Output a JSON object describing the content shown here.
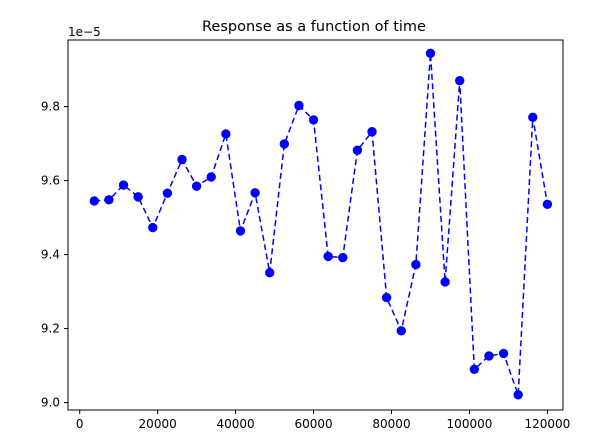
{
  "chart_data": {
    "type": "line",
    "title": "Response as a function of time",
    "xlabel": "",
    "ylabel": "",
    "offset_label": "1e−5",
    "xlim": [
      -3000,
      124000
    ],
    "ylim": [
      8.98,
      9.98
    ],
    "y_multiplier": 1e-05,
    "grid": false,
    "legend": "none",
    "x_ticks": [
      0,
      20000,
      40000,
      60000,
      80000,
      100000,
      120000
    ],
    "x_tick_labels": [
      "0",
      "20000",
      "40000",
      "60000",
      "80000",
      "100000",
      "120000"
    ],
    "y_ticks": [
      9.0,
      9.2,
      9.4,
      9.6,
      9.8
    ],
    "y_tick_labels": [
      "9.0",
      "9.2",
      "9.4",
      "9.6",
      "9.8"
    ],
    "series": [
      {
        "color": "#0000ff",
        "line_style": "dashed",
        "marker": "circle",
        "x": [
          3750,
          7500,
          11250,
          15000,
          18750,
          22500,
          26250,
          30000,
          33750,
          37500,
          41250,
          45000,
          48750,
          52500,
          56250,
          60000,
          63750,
          67500,
          71250,
          75000,
          78750,
          82500,
          86250,
          90000,
          93750,
          97500,
          101250,
          105000,
          108750,
          112500,
          116250,
          120000
        ],
        "y": [
          9.545,
          9.548,
          9.588,
          9.556,
          9.473,
          9.566,
          9.657,
          9.585,
          9.61,
          9.726,
          9.464,
          9.567,
          9.351,
          9.699,
          9.803,
          9.764,
          9.395,
          9.392,
          9.682,
          9.732,
          9.284,
          9.194,
          9.373,
          9.944,
          9.326,
          9.87,
          9.09,
          9.126,
          9.133,
          9.021,
          9.771,
          9.536
        ]
      }
    ]
  }
}
